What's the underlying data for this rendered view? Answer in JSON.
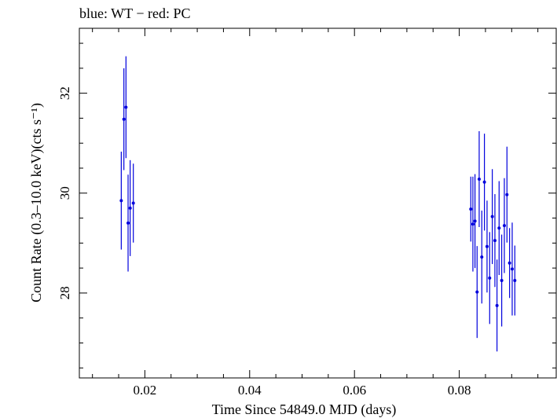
{
  "chart_data": {
    "type": "scatter",
    "title": "blue: WT − red: PC",
    "xlabel": "Time Since 54849.0 MJD (days)",
    "ylabel": "Count Rate (0.3–10.0 keV)(cts s⁻¹)",
    "xlim": [
      0.0075,
      0.0985
    ],
    "ylim": [
      26.3,
      33.3
    ],
    "x_major_ticks": [
      0.02,
      0.04,
      0.06,
      0.08
    ],
    "x_tick_labels": [
      "0.02",
      "0.04",
      "0.06",
      "0.08"
    ],
    "y_major_ticks": [
      28,
      30,
      32
    ],
    "y_tick_labels": [
      "28",
      "30",
      "32"
    ],
    "series": [
      {
        "name": "WT",
        "color": "#0000dd",
        "points": [
          {
            "x": 0.0155,
            "y": 29.85,
            "err": 0.98
          },
          {
            "x": 0.016,
            "y": 31.48,
            "err": 1.02
          },
          {
            "x": 0.0164,
            "y": 31.72,
            "err": 1.02
          },
          {
            "x": 0.0168,
            "y": 29.4,
            "err": 0.97
          },
          {
            "x": 0.0172,
            "y": 29.7,
            "err": 0.96
          },
          {
            "x": 0.0178,
            "y": 29.8,
            "err": 0.79
          },
          {
            "x": 0.0822,
            "y": 29.68,
            "err": 0.65
          },
          {
            "x": 0.0826,
            "y": 29.38,
            "err": 0.95
          },
          {
            "x": 0.083,
            "y": 29.44,
            "err": 0.94
          },
          {
            "x": 0.0834,
            "y": 28.02,
            "err": 0.92
          },
          {
            "x": 0.0838,
            "y": 30.28,
            "err": 0.96
          },
          {
            "x": 0.0843,
            "y": 28.72,
            "err": 0.93
          },
          {
            "x": 0.0848,
            "y": 30.22,
            "err": 0.97
          },
          {
            "x": 0.0853,
            "y": 28.93,
            "err": 0.92
          },
          {
            "x": 0.0858,
            "y": 28.3,
            "err": 0.92
          },
          {
            "x": 0.0863,
            "y": 29.53,
            "err": 0.95
          },
          {
            "x": 0.0868,
            "y": 29.05,
            "err": 0.93
          },
          {
            "x": 0.0872,
            "y": 27.75,
            "err": 0.92
          },
          {
            "x": 0.0876,
            "y": 29.3,
            "err": 0.94
          },
          {
            "x": 0.0881,
            "y": 28.25,
            "err": 0.92
          },
          {
            "x": 0.0886,
            "y": 29.35,
            "err": 0.95
          },
          {
            "x": 0.0891,
            "y": 29.97,
            "err": 0.96
          },
          {
            "x": 0.0896,
            "y": 28.6,
            "err": 0.7
          },
          {
            "x": 0.0901,
            "y": 28.48,
            "err": 0.93
          },
          {
            "x": 0.0906,
            "y": 28.25,
            "err": 0.7
          }
        ]
      },
      {
        "name": "PC",
        "color": "#dd0000",
        "points": []
      }
    ]
  }
}
